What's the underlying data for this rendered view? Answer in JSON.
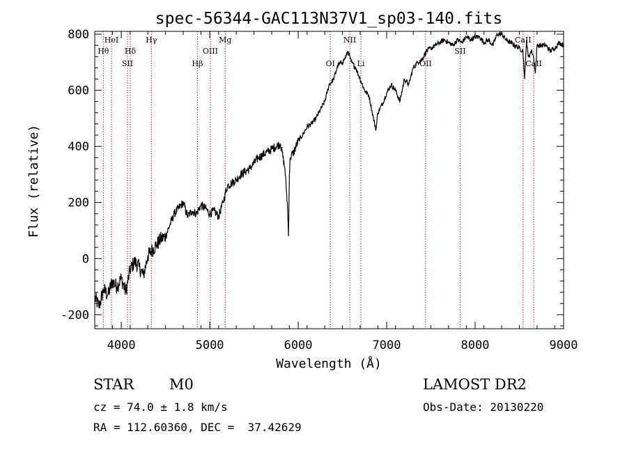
{
  "chart_data": {
    "type": "line",
    "title": "spec-56344-GAC113N37V1_sp03-140.fits",
    "xlabel": "Wavelength (Å)",
    "ylabel": "Flux (relative)",
    "xlim": [
      3700,
      9000
    ],
    "ylim": [
      -250,
      810
    ],
    "x_ticks": [
      4000,
      5000,
      6000,
      7000,
      8000,
      9000
    ],
    "y_ticks": [
      -200,
      0,
      200,
      400,
      600,
      800
    ],
    "grid": false,
    "series": [
      {
        "x": [
          3700,
          3750,
          3800,
          3850,
          3900,
          3950,
          4000,
          4050,
          4100,
          4150,
          4200,
          4250,
          4300,
          4350,
          4400,
          4450,
          4500,
          4550,
          4600,
          4650,
          4700,
          4750,
          4800,
          4850,
          4900,
          4950,
          5000,
          5050,
          5100,
          5150,
          5200,
          5250,
          5300,
          5350,
          5400,
          5450,
          5500,
          5550,
          5600,
          5650,
          5700,
          5750,
          5800,
          5850,
          5880,
          5890,
          5900,
          5910,
          5950,
          6000,
          6050,
          6100,
          6150,
          6200,
          6250,
          6300,
          6350,
          6400,
          6450,
          6500,
          6540,
          6563,
          6600,
          6650,
          6700,
          6750,
          6800,
          6850,
          6880,
          6900,
          6950,
          7000,
          7050,
          7100,
          7150,
          7200,
          7250,
          7300,
          7350,
          7400,
          7450,
          7500,
          7550,
          7600,
          7650,
          7700,
          7750,
          7800,
          7850,
          7900,
          7950,
          8000,
          8050,
          8100,
          8150,
          8200,
          8250,
          8300,
          8350,
          8400,
          8450,
          8500,
          8540,
          8560,
          8580,
          8600,
          8620,
          8640,
          8660,
          8680,
          8700,
          8750,
          8800,
          8850,
          8900,
          8950,
          9000
        ],
        "y": [
          -140,
          -170,
          -110,
          -130,
          -80,
          -100,
          -70,
          -120,
          -40,
          -10,
          -30,
          -60,
          10,
          30,
          50,
          70,
          80,
          120,
          160,
          180,
          200,
          150,
          170,
          160,
          190,
          180,
          160,
          170,
          150,
          200,
          260,
          270,
          280,
          300,
          310,
          320,
          340,
          360,
          370,
          380,
          390,
          400,
          410,
          320,
          180,
          80,
          300,
          360,
          380,
          420,
          440,
          470,
          480,
          500,
          530,
          560,
          620,
          640,
          690,
          700,
          720,
          740,
          700,
          680,
          640,
          600,
          580,
          500,
          460,
          520,
          550,
          590,
          620,
          600,
          560,
          640,
          620,
          680,
          700,
          710,
          740,
          750,
          760,
          770,
          780,
          770,
          760,
          780,
          770,
          790,
          780,
          790,
          790,
          770,
          780,
          760,
          800,
          800,
          780,
          770,
          760,
          750,
          740,
          640,
          780,
          720,
          730,
          740,
          720,
          660,
          760,
          760,
          760,
          740,
          750,
          770,
          760
        ]
      }
    ],
    "lines": [
      {
        "x": 3797,
        "label": "Hθ",
        "row": 2
      },
      {
        "x": 3889,
        "label": "HeI",
        "row": 1
      },
      {
        "x": 4070,
        "label": "SII",
        "row": 3
      },
      {
        "x": 4102,
        "label": "Hδ",
        "row": 2
      },
      {
        "x": 4340,
        "label": "Hγ",
        "row": 1
      },
      {
        "x": 4861,
        "label": "Hβ",
        "row": 3
      },
      {
        "x": 5007,
        "label": "OIII",
        "row": 2
      },
      {
        "x": 5175,
        "label": "Mg",
        "row": 1
      },
      {
        "x": 6363,
        "label": "OI",
        "row": 3
      },
      {
        "x": 6583,
        "label": "NII",
        "row": 1
      },
      {
        "x": 6708,
        "label": "Li",
        "row": 3
      },
      {
        "x": 7440,
        "label": "OII",
        "row": 3
      },
      {
        "x": 7830,
        "label": "SII",
        "row": 2
      },
      {
        "x": 8542,
        "label": "CaII",
        "row": 1
      },
      {
        "x": 8662,
        "label": "CaII",
        "row": 3
      }
    ]
  },
  "info": {
    "class": "STAR",
    "subclass": "M0",
    "survey": "LAMOST DR2",
    "cz": "cz = 74.0 ± 1.8 km/s",
    "obs_date": "Obs-Date: 20130220",
    "radec": "RA = 112.60360, DEC =  37.42629"
  },
  "colors": {
    "spectrum": "#000000",
    "line_marker": "#b22222"
  }
}
